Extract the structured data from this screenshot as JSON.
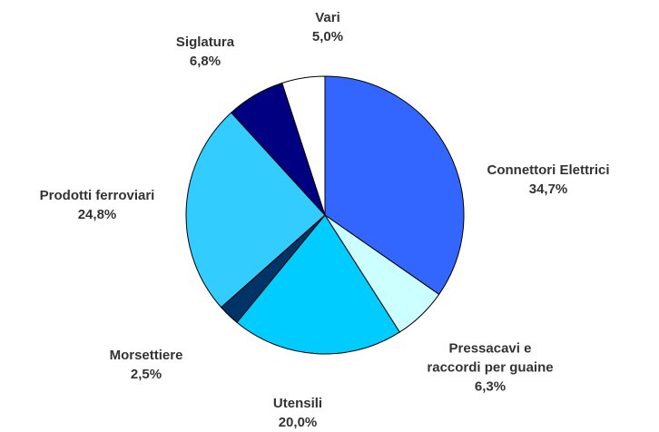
{
  "chart_data": {
    "type": "pie",
    "categories": [
      "Connettori Elettrici",
      "Pressacavi e raccordi per guaine",
      "Utensili",
      "Morsettiere",
      "Prodotti ferroviari",
      "Siglatura",
      "Vari"
    ],
    "values": [
      34.7,
      6.3,
      20.0,
      2.5,
      24.8,
      6.8,
      5.0
    ],
    "value_labels": [
      "34,7%",
      "6,3%",
      "20,0%",
      "2,5%",
      "24,8%",
      "6,8%",
      "5,0%"
    ],
    "colors": [
      "#3366ff",
      "#ccffff",
      "#00ccff",
      "#003366",
      "#33ccff",
      "#000080",
      "#ffffff"
    ]
  }
}
